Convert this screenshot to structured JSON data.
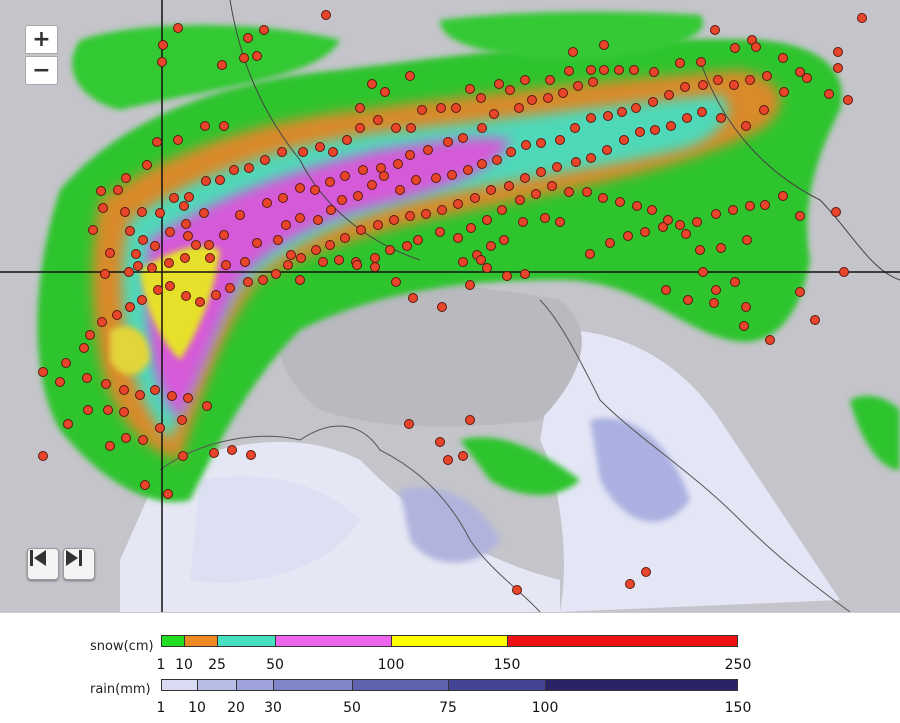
{
  "controls": {
    "zoom_in": "+",
    "zoom_out": "−",
    "prev_icon": "skip-back-icon",
    "next_icon": "skip-forward-icon"
  },
  "map": {
    "background_color": "#c9c9cf",
    "station_marker_color": "#e8452a"
  },
  "legend": {
    "snow": {
      "label": "snow(cm)",
      "ticks": [
        "1",
        "10",
        "25",
        "50",
        "100",
        "150",
        "250"
      ],
      "colors": [
        "#22dd22",
        "#ee8822",
        "#44e0c0",
        "#ee66ee",
        "#ffff00",
        "#ee1111"
      ]
    },
    "rain": {
      "label": "rain(mm)",
      "ticks": [
        "1",
        "10",
        "20",
        "30",
        "50",
        "75",
        "100",
        "150"
      ],
      "colors": [
        "#d8dbf2",
        "#b8bde6",
        "#9da3da",
        "#7f85c8",
        "#5f63b0",
        "#434496",
        "#2a2466"
      ]
    }
  }
}
